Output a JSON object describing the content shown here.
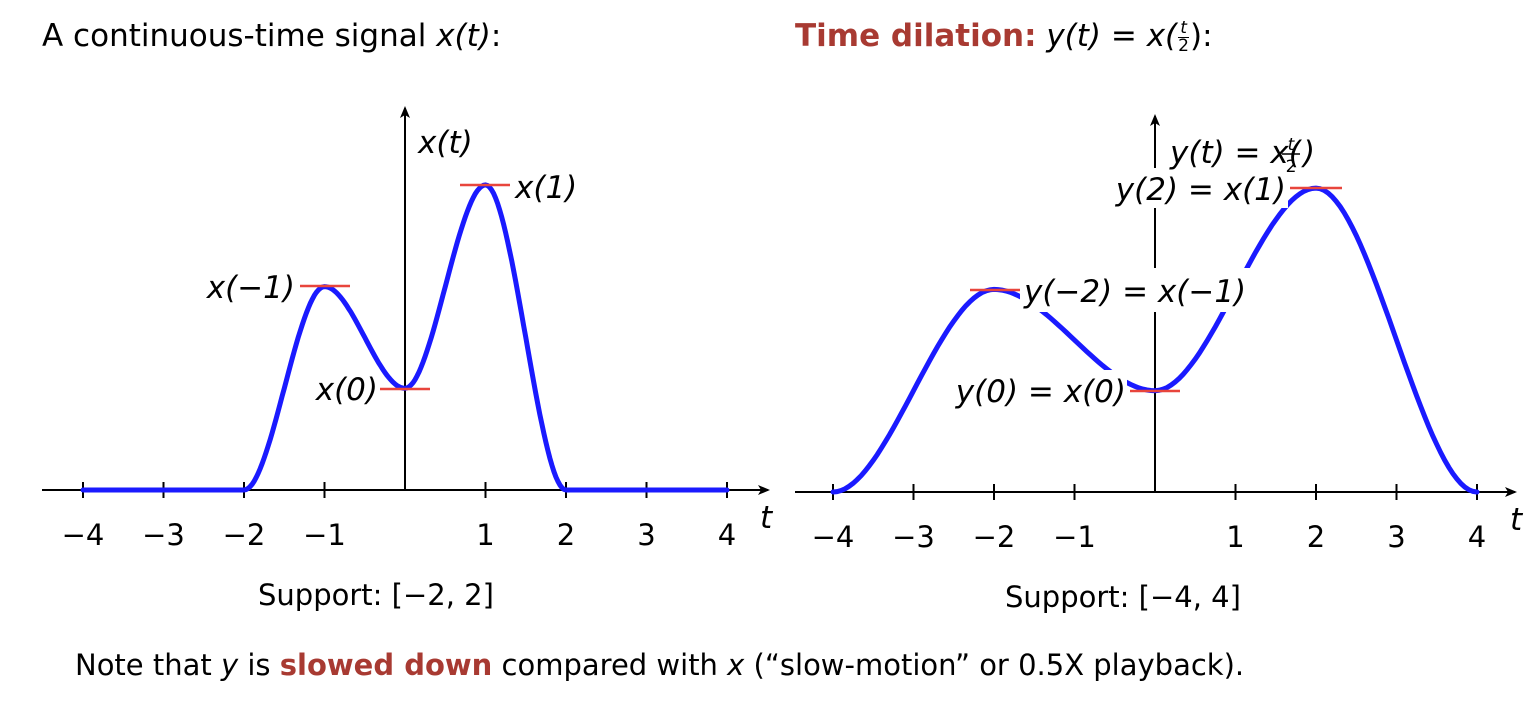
{
  "left": {
    "title_prefix": "A continuous-time signal ",
    "title_math": "x(t)",
    "title_suffix": ":",
    "axis_label": "x(t)",
    "x_axis_var": "t",
    "tick_labels": [
      "−4",
      "−3",
      "−2",
      "−1",
      "1",
      "2",
      "3",
      "4"
    ],
    "markers": [
      "x(−1)",
      "x(0)",
      "x(1)"
    ],
    "support_label": "Support:",
    "support_value": "[−2, 2]"
  },
  "right": {
    "title_highlight": "Time dilation:",
    "title_math": "y(t) = x(",
    "title_frac_num": "t",
    "title_frac_den": "2",
    "title_suffix": "):",
    "axis_label": "y(t) = x(",
    "axis_frac_num": "t",
    "axis_frac_den": "2",
    "axis_label_close": ")",
    "x_axis_var": "t",
    "tick_labels": [
      "−4",
      "−3",
      "−2",
      "−1",
      "1",
      "2",
      "3",
      "4"
    ],
    "markers": [
      "y(−2) = x(−1)",
      "y(0) = x(0)",
      "y(2) = x(1)"
    ],
    "support_label": "Support:",
    "support_value": "[−4, 4]"
  },
  "note": {
    "prefix": "Note that ",
    "var_y": "y",
    "mid1": " is ",
    "highlight": "slowed down",
    "mid2": " compared with ",
    "var_x": "x",
    "suffix": " (“slow-motion” or 0.5X playback)."
  },
  "colors": {
    "curve": "#1a1aff",
    "marker": "#e8453c",
    "highlight": "#a83a32"
  },
  "chart_data": {
    "type": "line",
    "series": [
      {
        "x": [
          -4,
          -2,
          -1,
          0,
          1,
          2,
          4
        ],
        "y": [
          0,
          0,
          2,
          1,
          3,
          0,
          0
        ]
      },
      {
        "x": [
          -4,
          -2,
          0,
          2,
          4
        ],
        "y": [
          0,
          2,
          1,
          3,
          0
        ]
      }
    ]
  }
}
